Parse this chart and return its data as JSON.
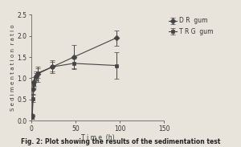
{
  "title": "Fig. 2: Plot showing the results of the sedimentation test",
  "xlabel": "T i m e  (h)",
  "ylabel": "S e d i m e n t a t i o n  r a t i o",
  "xlim": [
    0,
    150
  ],
  "ylim": [
    0.0,
    2.5
  ],
  "yticks": [
    0.0,
    0.5,
    1.0,
    1.5,
    2.0,
    2.5
  ],
  "xticks": [
    0,
    50,
    100,
    150
  ],
  "DR_gum": {
    "x": [
      1,
      2,
      3,
      5,
      7,
      24,
      48,
      96
    ],
    "y": [
      0.12,
      0.75,
      0.92,
      1.05,
      1.1,
      1.27,
      1.5,
      1.95
    ],
    "yerr": [
      0.04,
      0.12,
      0.1,
      0.1,
      0.18,
      0.15,
      0.28,
      0.18
    ],
    "label": "D R  gum",
    "color": "#444444",
    "marker": "D",
    "markersize": 3.5
  },
  "TRG_gum": {
    "x": [
      1,
      2,
      3,
      5,
      7,
      24,
      48,
      96
    ],
    "y": [
      0.08,
      0.52,
      0.85,
      1.05,
      1.12,
      1.27,
      1.35,
      1.3
    ],
    "yerr": [
      0.04,
      0.08,
      0.08,
      0.08,
      0.12,
      0.12,
      0.12,
      0.32
    ],
    "label": "T R G  gum",
    "color": "#444444",
    "marker": "s",
    "markersize": 3.5
  },
  "background_color": "#e8e4dc",
  "linewidth": 0.8,
  "capsize": 2.5,
  "elinewidth": 0.7
}
